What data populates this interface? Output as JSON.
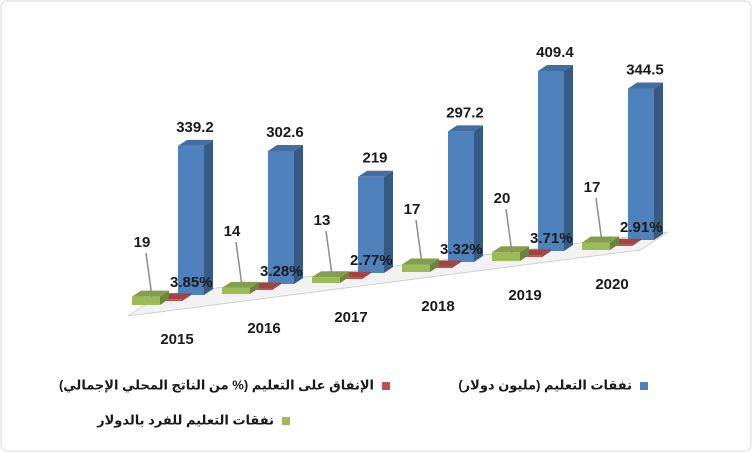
{
  "chart_data": {
    "type": "bar",
    "categories": [
      "2015",
      "2016",
      "2017",
      "2018",
      "2019",
      "2020"
    ],
    "series": [
      {
        "name": "نفقات التعليم (مليون دولار)",
        "color": "#4f81bd",
        "values": [
          339.2,
          302.6,
          219,
          297.2,
          409.4,
          344.5
        ]
      },
      {
        "name": "الإنفاق على التعليم (% من الناتج المحلي الإجمالي)",
        "color": "#c0504d",
        "values": [
          3.85,
          3.28,
          2.77,
          3.32,
          3.71,
          2.91
        ],
        "value_labels": [
          "3.85%",
          "3.28%",
          "2.77%",
          "3.32%",
          "3.71%",
          "2.91%"
        ]
      },
      {
        "name": "نفقات التعليم للفرد بالدولار",
        "color": "#9bbb59",
        "values": [
          19,
          14,
          13,
          17,
          20,
          17
        ]
      }
    ],
    "legend": "bottom"
  }
}
